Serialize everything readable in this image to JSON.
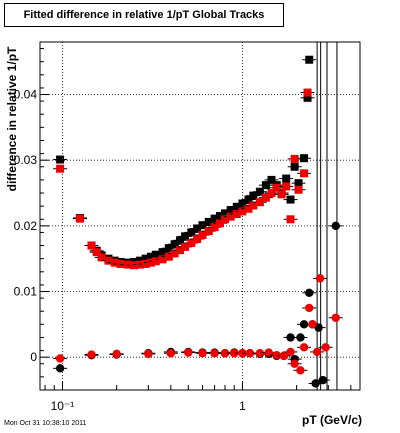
{
  "chart_data": {
    "type": "scatter",
    "title": "Fitted difference in relative 1/pT  Global Tracks",
    "xlabel": "pT (GeV/c)",
    "ylabel": "difference in relative 1/pT",
    "x_scale": "log",
    "xlim": [
      0.075,
      4.5
    ],
    "ylim": [
      -0.005,
      0.048
    ],
    "grid": true,
    "x_ticks": [
      {
        "value": 0.1,
        "label": "10⁻¹"
      },
      {
        "value": 1,
        "label": "1"
      }
    ],
    "y_ticks": [
      {
        "value": 0,
        "label": "0"
      },
      {
        "value": 0.01,
        "label": "0.01"
      },
      {
        "value": 0.02,
        "label": "0.02"
      },
      {
        "value": 0.03,
        "label": "0.03"
      },
      {
        "value": 0.04,
        "label": "0.04"
      }
    ],
    "series": [
      {
        "marker": "square",
        "color": "#000000",
        "points": [
          [
            0.097,
            0.0301
          ],
          [
            0.125,
            0.0212
          ],
          [
            0.145,
            0.017
          ],
          [
            0.155,
            0.0162
          ],
          [
            0.165,
            0.0155
          ],
          [
            0.18,
            0.015
          ],
          [
            0.195,
            0.0147
          ],
          [
            0.21,
            0.0145
          ],
          [
            0.23,
            0.0144
          ],
          [
            0.25,
            0.0145
          ],
          [
            0.27,
            0.0147
          ],
          [
            0.29,
            0.015
          ],
          [
            0.31,
            0.0153
          ],
          [
            0.33,
            0.0156
          ],
          [
            0.36,
            0.016
          ],
          [
            0.39,
            0.0166
          ],
          [
            0.42,
            0.0172
          ],
          [
            0.45,
            0.0178
          ],
          [
            0.48,
            0.0184
          ],
          [
            0.52,
            0.019
          ],
          [
            0.56,
            0.0196
          ],
          [
            0.6,
            0.0201
          ],
          [
            0.65,
            0.0206
          ],
          [
            0.7,
            0.0211
          ],
          [
            0.75,
            0.0215
          ],
          [
            0.8,
            0.0219
          ],
          [
            0.86,
            0.0224
          ],
          [
            0.93,
            0.0229
          ],
          [
            1.0,
            0.0234
          ],
          [
            1.08,
            0.024
          ],
          [
            1.15,
            0.0246
          ],
          [
            1.25,
            0.0252
          ],
          [
            1.35,
            0.0262
          ],
          [
            1.45,
            0.027
          ],
          [
            1.55,
            0.0262
          ],
          [
            1.65,
            0.025
          ],
          [
            1.75,
            0.0272
          ],
          [
            1.85,
            0.024
          ],
          [
            1.95,
            0.029
          ],
          [
            2.05,
            0.0265
          ],
          [
            2.2,
            0.0303
          ],
          [
            2.3,
            0.0395
          ],
          [
            2.35,
            0.0453
          ]
        ]
      },
      {
        "marker": "square",
        "color": "#ee0000",
        "points": [
          [
            0.097,
            0.0287
          ],
          [
            0.125,
            0.0211
          ],
          [
            0.145,
            0.017
          ],
          [
            0.155,
            0.016
          ],
          [
            0.165,
            0.0152
          ],
          [
            0.18,
            0.0147
          ],
          [
            0.195,
            0.0144
          ],
          [
            0.21,
            0.0142
          ],
          [
            0.23,
            0.0141
          ],
          [
            0.25,
            0.014
          ],
          [
            0.27,
            0.0141
          ],
          [
            0.29,
            0.0142
          ],
          [
            0.31,
            0.0144
          ],
          [
            0.33,
            0.0146
          ],
          [
            0.36,
            0.0149
          ],
          [
            0.39,
            0.0153
          ],
          [
            0.42,
            0.0158
          ],
          [
            0.45,
            0.0163
          ],
          [
            0.48,
            0.0168
          ],
          [
            0.52,
            0.0174
          ],
          [
            0.56,
            0.018
          ],
          [
            0.6,
            0.0186
          ],
          [
            0.65,
            0.0192
          ],
          [
            0.7,
            0.0198
          ],
          [
            0.75,
            0.0204
          ],
          [
            0.8,
            0.021
          ],
          [
            0.86,
            0.0214
          ],
          [
            0.93,
            0.0218
          ],
          [
            1.0,
            0.0222
          ],
          [
            1.08,
            0.0226
          ],
          [
            1.15,
            0.0231
          ],
          [
            1.25,
            0.0236
          ],
          [
            1.35,
            0.0243
          ],
          [
            1.45,
            0.025
          ],
          [
            1.55,
            0.0258
          ],
          [
            1.65,
            0.0248
          ],
          [
            1.75,
            0.026
          ],
          [
            1.85,
            0.021
          ],
          [
            1.95,
            0.0302
          ],
          [
            2.05,
            0.0255
          ],
          [
            2.2,
            0.028
          ],
          [
            2.3,
            0.0403
          ]
        ]
      },
      {
        "marker": "circle",
        "color": "#000000",
        "points": [
          [
            0.097,
            -0.0017
          ],
          [
            0.145,
            0.0003
          ],
          [
            0.2,
            0.0004
          ],
          [
            0.3,
            0.0006
          ],
          [
            0.4,
            0.0008
          ],
          [
            0.5,
            0.0008
          ],
          [
            0.6,
            0.0007
          ],
          [
            0.7,
            0.0007
          ],
          [
            0.8,
            0.0006
          ],
          [
            0.9,
            0.0007
          ],
          [
            1.0,
            0.0006
          ],
          [
            1.1,
            0.0006
          ],
          [
            1.25,
            0.0005
          ],
          [
            1.4,
            0.0005
          ],
          [
            1.55,
            0.0002
          ],
          [
            1.7,
            0.0002
          ],
          [
            1.85,
            0.003
          ],
          [
            1.95,
            -0.0003
          ],
          [
            2.1,
            0.003
          ],
          [
            2.2,
            0.005
          ],
          [
            2.35,
            0.0098
          ],
          [
            2.45,
            0.005
          ],
          [
            2.55,
            -0.004
          ],
          [
            2.65,
            0.0045
          ],
          [
            2.8,
            -0.0035
          ],
          [
            3.3,
            0.02
          ]
        ]
      },
      {
        "marker": "circle",
        "color": "#ee0000",
        "points": [
          [
            0.097,
            -0.0002
          ],
          [
            0.145,
            0.0004
          ],
          [
            0.2,
            0.0005
          ],
          [
            0.3,
            0.0005
          ],
          [
            0.4,
            0.0006
          ],
          [
            0.5,
            0.0007
          ],
          [
            0.6,
            0.0006
          ],
          [
            0.7,
            0.0006
          ],
          [
            0.8,
            0.0006
          ],
          [
            0.9,
            0.0006
          ],
          [
            1.0,
            0.0006
          ],
          [
            1.1,
            0.0006
          ],
          [
            1.25,
            0.0006
          ],
          [
            1.4,
            0.0007
          ],
          [
            1.55,
            0.0003
          ],
          [
            1.7,
            0.0002
          ],
          [
            1.85,
            0.0008
          ],
          [
            1.95,
            -0.001
          ],
          [
            2.1,
            -0.002
          ],
          [
            2.2,
            0.0015
          ],
          [
            2.35,
            0.0075
          ],
          [
            2.45,
            0.005
          ],
          [
            2.6,
            0.0008
          ],
          [
            2.7,
            0.012
          ],
          [
            2.9,
            0.0015
          ],
          [
            3.3,
            0.006
          ]
        ]
      }
    ],
    "vertical_error_bars": [
      {
        "x": 2.6,
        "y_from": -0.005,
        "y_to": 0.048
      },
      {
        "x": 2.72,
        "y_from": -0.005,
        "y_to": 0.048
      },
      {
        "x": 2.95,
        "y_from": -0.005,
        "y_to": 0.048
      },
      {
        "x": 3.35,
        "y_from": -0.005,
        "y_to": 0.048
      }
    ]
  },
  "timestamp": "Mon Oct 31 10:38:10 2011"
}
